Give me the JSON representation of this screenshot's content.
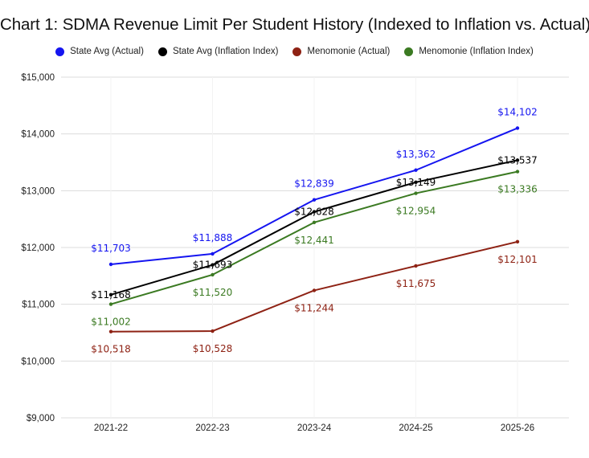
{
  "chart_data": {
    "type": "line",
    "title": "Chart 1: SDMA Revenue Limit Per Student History (Indexed to Inflation vs. Actual)",
    "xlabel": "",
    "ylabel": "",
    "categories": [
      "2021-22",
      "2022-23",
      "2023-24",
      "2024-25",
      "2025-26"
    ],
    "ylim": [
      9000,
      15000
    ],
    "yticks": [
      9000,
      10000,
      11000,
      12000,
      13000,
      14000,
      15000
    ],
    "ytick_labels": [
      "$9,000",
      "$10,000",
      "$11,000",
      "$12,000",
      "$13,000",
      "$14,000",
      "$15,000"
    ],
    "grid": true,
    "legend_position": "top-center",
    "series": [
      {
        "name": "State Avg (Actual)",
        "color": "#1515f0",
        "values": [
          11703,
          11888,
          12839,
          13362,
          14102
        ],
        "labels": [
          "$11,703",
          "$11,888",
          "$12,839",
          "$13,362",
          "$14,102"
        ],
        "label_position": "above"
      },
      {
        "name": "State Avg (Inflation Index)",
        "color": "#000000",
        "values": [
          11168,
          11693,
          12628,
          13149,
          13537
        ],
        "labels": [
          "$11,168",
          "$11,693",
          "$12,628",
          "$13,149",
          "$13,537"
        ],
        "label_position": "on"
      },
      {
        "name": "Menomonie (Actual)",
        "color": "#8e2214",
        "values": [
          10518,
          10528,
          11244,
          11675,
          12101
        ],
        "labels": [
          "$10,518",
          "$10,528",
          "$11,244",
          "$11,675",
          "$12,101"
        ],
        "label_position": "below"
      },
      {
        "name": "Menomonie (Inflation Index)",
        "color": "#3b7a22",
        "values": [
          11002,
          11520,
          12441,
          12954,
          13336
        ],
        "labels": [
          "$11,002",
          "$11,520",
          "$12,441",
          "$12,954",
          "$13,336"
        ],
        "label_position": "below"
      }
    ]
  }
}
